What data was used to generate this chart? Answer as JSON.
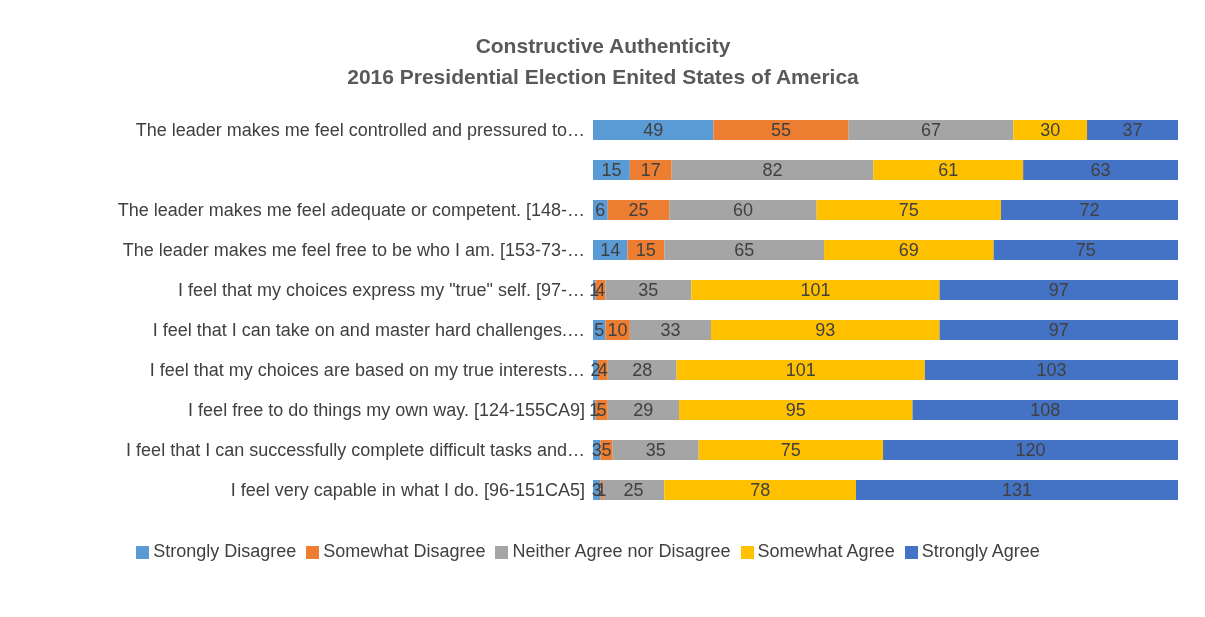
{
  "chart_data": {
    "type": "bar",
    "orientation": "horizontal",
    "stacked": true,
    "title": "Constructive Authenticity\n2016 Presidential Election Enited States of America",
    "categories": [
      "The leader makes me feel controlled and pressured to…",
      null,
      "The leader makes me feel adequate or competent. [148-…",
      "The leader makes me feel free to be who I am. [153-73-…",
      "I feel that my choices express my \"true\" self. [97-…",
      "I feel that I can take on and master hard challenges.…",
      "I feel that my choices are based on my true interests…",
      "I feel free to do things my own way. [124-155CA9]",
      "I feel that I can successfully complete difficult tasks and…",
      "I feel very capable in what I do. [96-151CA5]"
    ],
    "series": [
      {
        "name": "Strongly Disagree",
        "color": "#5b9bd5",
        "values": [
          49,
          15,
          6,
          14,
          1,
          5,
          2,
          1,
          3,
          3
        ]
      },
      {
        "name": "Somewhat Disagree",
        "color": "#ed7d31",
        "values": [
          55,
          17,
          25,
          15,
          4,
          10,
          4,
          5,
          5,
          1
        ]
      },
      {
        "name": "Neither Agree nor Disagree",
        "color": "#a5a5a5",
        "values": [
          67,
          82,
          60,
          65,
          35,
          33,
          28,
          29,
          35,
          25
        ]
      },
      {
        "name": "Somewhat Agree",
        "color": "#ffc000",
        "values": [
          30,
          61,
          75,
          69,
          101,
          93,
          101,
          95,
          75,
          78
        ]
      },
      {
        "name": "Strongly Agree",
        "color": "#4472c4",
        "values": [
          37,
          63,
          72,
          75,
          97,
          97,
          103,
          108,
          120,
          131
        ]
      }
    ],
    "tick_labels": "y",
    "legend": "bottom",
    "data_labels": true
  }
}
